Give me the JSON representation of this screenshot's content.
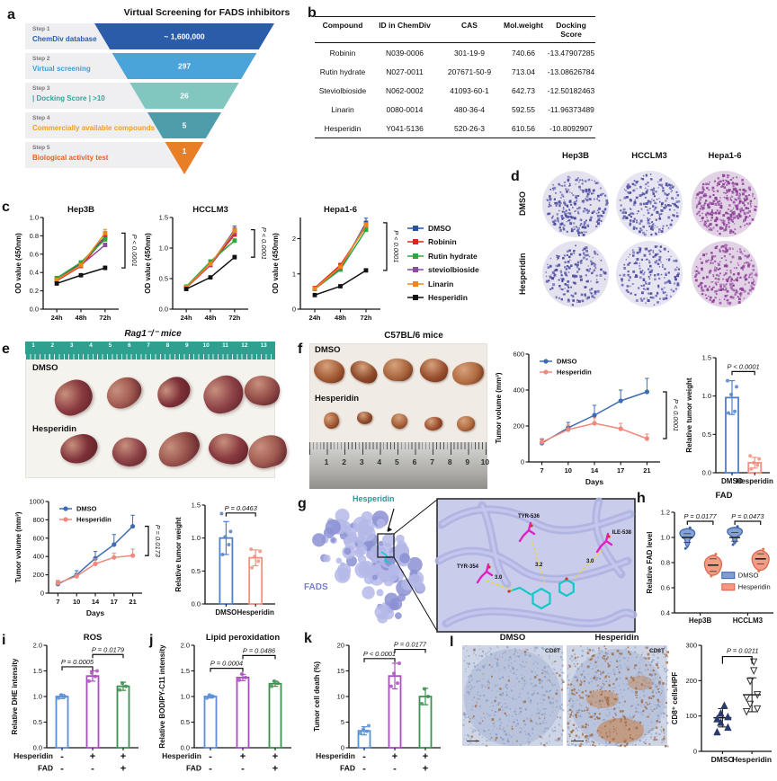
{
  "letters": {
    "a": "a",
    "b": "b",
    "c": "c",
    "d": "d",
    "e": "e",
    "f": "f",
    "g": "g",
    "h": "h",
    "i": "i",
    "j": "j",
    "k": "k",
    "l": "l"
  },
  "panel_a": {
    "title": "Virtual Screening for FADS inhibitors",
    "steps": [
      {
        "step": "Step 1",
        "label": "ChemDiv database",
        "value": "~ 1,600,000",
        "bar_color": "#2a5caa",
        "label_color": "#2a5caa"
      },
      {
        "step": "Step 2",
        "label": "Virtual screening",
        "value": "297",
        "bar_color": "#4aa4da",
        "label_color": "#3f9fd8"
      },
      {
        "step": "Step 3",
        "label": "| Docking Score | >10",
        "value": "26",
        "bar_color": "#82c7bf",
        "label_color": "#2fa79b"
      },
      {
        "step": "Step 4",
        "label": "Commercially available compounds",
        "value": "5",
        "bar_color": "#4e9dab",
        "label_color": "#f0a01e"
      },
      {
        "step": "Step 5",
        "label": "Biological activity test",
        "value": "1",
        "bar_color": "#e87e25",
        "label_color": "#e8611f"
      }
    ]
  },
  "panel_b": {
    "headers": [
      "Compound",
      "ID in ChemDiv",
      "CAS",
      "Mol.weight",
      "Docking Score"
    ],
    "rows": [
      [
        "Robinin",
        "N039-0006",
        "301-19-9",
        "740.66",
        "-13.47907285"
      ],
      [
        "Rutin hydrate",
        "N027-0011",
        "207671-50-9",
        "713.04",
        "-13.08626784"
      ],
      [
        "Steviolbioside",
        "N062-0002",
        "41093-60-1",
        "642.73",
        "-12.50182463"
      ],
      [
        "Linarin",
        "0080-0014",
        "480-36-4",
        "592.55",
        "-11.96373489"
      ],
      [
        "Hesperidin",
        "Y041-5136",
        "520-26-3",
        "610.56",
        "-10.8092907"
      ]
    ]
  },
  "panel_d": {
    "col_labels": [
      "Hep3B",
      "HCCLM3",
      "Hepa1-6"
    ],
    "row_labels": [
      "DMSO",
      "Hesperidin"
    ]
  },
  "panel_e": {
    "title": "Rag1⁻/⁻ mice",
    "row_labels": [
      "DMSO",
      "Hesperidin"
    ],
    "ruler_numbers": [
      "1",
      "2",
      "3",
      "4",
      "5",
      "6",
      "7",
      "8",
      "9",
      "10",
      "11",
      "12",
      "13"
    ]
  },
  "panel_f": {
    "title": "C57BL/6 mice",
    "row_labels": [
      "DMSO",
      "Hesperidin"
    ],
    "ruler_numbers": [
      "1",
      "2",
      "3",
      "4",
      "5",
      "6",
      "7",
      "8",
      "9",
      "10"
    ]
  },
  "panel_g": {
    "ligand_label": "Hesperidin",
    "protein_label": "FADS",
    "residues": [
      "TYR-536",
      "ILE-538",
      "TYR-354"
    ],
    "distances": [
      "3.0",
      "3.2",
      "3.0"
    ]
  },
  "panel_l": {
    "img_titles": [
      "DMSO",
      "Hesperidin"
    ],
    "marker_label": "CD8T"
  },
  "chart_data": [
    {
      "id": "hep3b",
      "type": "line",
      "title": "Hep3B",
      "x": [
        "24h",
        "48h",
        "72h"
      ],
      "ylabel": "OD value (450nm)",
      "ylim": [
        0,
        1.0
      ],
      "yticks": [
        0,
        0.2,
        0.4,
        0.6,
        0.8,
        1.0
      ],
      "ytick_labels": [
        "0.0",
        "0.2",
        "0.4",
        "0.6",
        "0.8",
        "1.0"
      ],
      "annotation": "P < 0.0001",
      "series": [
        {
          "name": "DMSO",
          "color": "#2b50a8",
          "values": [
            0.32,
            0.5,
            0.79
          ],
          "errors": [
            0.01,
            0.015,
            0.04
          ]
        },
        {
          "name": "Robinin",
          "color": "#e0241d",
          "values": [
            0.31,
            0.47,
            0.78
          ],
          "errors": [
            0.01,
            0.015,
            0.03
          ]
        },
        {
          "name": "Rutin hydrate",
          "color": "#2ca83c",
          "values": [
            0.34,
            0.51,
            0.76
          ],
          "errors": [
            0.01,
            0.01,
            0.02
          ]
        },
        {
          "name": "steviolbioside",
          "color": "#8d4a9e",
          "values": [
            0.32,
            0.48,
            0.7
          ],
          "errors": [
            0.01,
            0.01,
            0.02
          ]
        },
        {
          "name": "Linarin",
          "color": "#f08519",
          "values": [
            0.32,
            0.48,
            0.83
          ],
          "errors": [
            0.01,
            0.015,
            0.04
          ]
        },
        {
          "name": "Hesperidin",
          "color": "#111111",
          "values": [
            0.28,
            0.37,
            0.45
          ],
          "errors": [
            0.01,
            0.01,
            0.02
          ]
        }
      ]
    },
    {
      "id": "hcclm3",
      "type": "line",
      "title": "HCCLM3",
      "x": [
        "24h",
        "48h",
        "72h"
      ],
      "ylabel": "OD value (450nm)",
      "ylim": [
        0,
        1.5
      ],
      "yticks": [
        0,
        0.5,
        1.0,
        1.5
      ],
      "ytick_labels": [
        "0.0",
        "0.5",
        "1.0",
        "1.5"
      ],
      "annotation": "P < 0.0001",
      "series": [
        {
          "name": "DMSO",
          "color": "#2b50a8",
          "values": [
            0.36,
            0.73,
            1.3
          ],
          "errors": [
            0.01,
            0.02,
            0.06
          ]
        },
        {
          "name": "Robinin",
          "color": "#e0241d",
          "values": [
            0.35,
            0.72,
            1.22
          ],
          "errors": [
            0.01,
            0.02,
            0.04
          ]
        },
        {
          "name": "Rutin hydrate",
          "color": "#2ca83c",
          "values": [
            0.37,
            0.78,
            1.12
          ],
          "errors": [
            0.01,
            0.02,
            0.03
          ]
        },
        {
          "name": "steviolbioside",
          "color": "#8d4a9e",
          "values": [
            0.36,
            0.73,
            1.26
          ],
          "errors": [
            0.01,
            0.02,
            0.03
          ]
        },
        {
          "name": "Linarin",
          "color": "#f08519",
          "values": [
            0.36,
            0.74,
            1.28
          ],
          "errors": [
            0.01,
            0.02,
            0.04
          ]
        },
        {
          "name": "Hesperidin",
          "color": "#111111",
          "values": [
            0.33,
            0.52,
            0.85
          ],
          "errors": [
            0.01,
            0.01,
            0.03
          ]
        }
      ]
    },
    {
      "id": "hepa16",
      "type": "line",
      "title": "Hepa1-6",
      "x": [
        "24h",
        "48h",
        "72h"
      ],
      "ylabel": "OD value (450nm)",
      "ylim": [
        0,
        2.6
      ],
      "yticks": [
        0,
        1,
        2
      ],
      "ytick_labels": [
        "0",
        "1",
        "2"
      ],
      "annotation": "P < 0.0001",
      "series": [
        {
          "name": "DMSO",
          "color": "#2b50a8",
          "values": [
            0.58,
            1.15,
            2.45
          ],
          "errors": [
            0.02,
            0.05,
            0.13
          ]
        },
        {
          "name": "Robinin",
          "color": "#e0241d",
          "values": [
            0.6,
            1.25,
            2.35
          ],
          "errors": [
            0.02,
            0.05,
            0.08
          ]
        },
        {
          "name": "Rutin hydrate",
          "color": "#2ca83c",
          "values": [
            0.57,
            1.12,
            2.25
          ],
          "errors": [
            0.02,
            0.04,
            0.06
          ]
        },
        {
          "name": "steviolbioside",
          "color": "#8d4a9e",
          "values": [
            0.58,
            1.18,
            2.4
          ],
          "errors": [
            0.02,
            0.04,
            0.06
          ]
        },
        {
          "name": "Linarin",
          "color": "#f08519",
          "values": [
            0.58,
            1.2,
            2.38
          ],
          "errors": [
            0.02,
            0.04,
            0.07
          ]
        },
        {
          "name": "Hesperidin",
          "color": "#111111",
          "values": [
            0.4,
            0.65,
            1.1
          ],
          "errors": [
            0.02,
            0.03,
            0.04
          ]
        }
      ]
    },
    {
      "id": "e_volume",
      "type": "line",
      "x": [
        "7",
        "10",
        "14",
        "17",
        "21"
      ],
      "xlabel": "Days",
      "ylabel": "Tumor volume (mm³)",
      "ylim": [
        0,
        1000
      ],
      "yticks": [
        0,
        200,
        400,
        600,
        800,
        1000
      ],
      "annotation": "P = 0.0173",
      "legend": "inside",
      "marker": "circle",
      "series": [
        {
          "name": "DMSO",
          "color": "#3d6cb4",
          "values": [
            100,
            200,
            380,
            530,
            730
          ],
          "errors": [
            30,
            45,
            75,
            110,
            120
          ]
        },
        {
          "name": "Hesperidin",
          "color": "#f0897b",
          "values": [
            110,
            185,
            320,
            390,
            410
          ],
          "errors": [
            30,
            35,
            55,
            45,
            70
          ]
        }
      ]
    },
    {
      "id": "e_weight",
      "type": "bar",
      "categories": [
        "DMSO",
        "Hesperidin"
      ],
      "ylabel": "Relative tumor weight",
      "ylim": [
        0,
        1.5
      ],
      "yticks": [
        0,
        0.5,
        1.0,
        1.5
      ],
      "ytick_labels": [
        "0.0",
        "0.5",
        "1.0",
        "1.5"
      ],
      "values": [
        1.0,
        0.7
      ],
      "errors": [
        0.25,
        0.12
      ],
      "colors": [
        "#4f81c7",
        "#f2917f"
      ],
      "points": [
        [
          0.75,
          0.9,
          1.02,
          1.1,
          1.37
        ],
        [
          0.55,
          0.65,
          0.72,
          0.8,
          0.83
        ]
      ],
      "sig": [
        {
          "a": 0,
          "b": 1,
          "label": "P = 0.0463",
          "h": 1.38
        }
      ]
    },
    {
      "id": "f_volume",
      "type": "line",
      "x": [
        "7",
        "10",
        "14",
        "17",
        "21"
      ],
      "xlabel": "Days",
      "ylabel": "Tumor volume (mm³)",
      "ylim": [
        0,
        600
      ],
      "yticks": [
        0,
        200,
        400,
        600
      ],
      "annotation": "P < 0.0001",
      "legend": "inside",
      "marker": "circle",
      "series": [
        {
          "name": "DMSO",
          "color": "#3d6cb4",
          "values": [
            105,
            190,
            260,
            340,
            390
          ],
          "errors": [
            20,
            30,
            55,
            60,
            75
          ]
        },
        {
          "name": "Hesperidin",
          "color": "#f0897b",
          "values": [
            110,
            180,
            215,
            185,
            130
          ],
          "errors": [
            20,
            25,
            30,
            30,
            25
          ]
        }
      ]
    },
    {
      "id": "f_weight",
      "type": "bar",
      "categories": [
        "DMSO",
        "Hesperidin"
      ],
      "ylabel": "Relative tumor weight",
      "ylim": [
        0,
        1.5
      ],
      "yticks": [
        0,
        0.5,
        1.0,
        1.5
      ],
      "ytick_labels": [
        "0.0",
        "0.5",
        "1.0",
        "1.5"
      ],
      "values": [
        0.98,
        0.13
      ],
      "errors": [
        0.22,
        0.07
      ],
      "colors": [
        "#4f81c7",
        "#f2917f"
      ],
      "points": [
        [
          0.78,
          0.8,
          1.02,
          1.12,
          1.2
        ],
        [
          0.05,
          0.1,
          0.13,
          0.18,
          0.22
        ]
      ],
      "sig": [
        {
          "a": 0,
          "b": 1,
          "label": "P < 0.0001",
          "h": 1.32
        }
      ]
    },
    {
      "id": "fad_violin",
      "type": "violin",
      "title": "FAD",
      "ylabel": "Relative FAD level",
      "ylim": [
        0.4,
        1.2
      ],
      "yticks": [
        0.4,
        0.6,
        0.8,
        1.0,
        1.2
      ],
      "ytick_labels": [
        "0.4",
        "0.6",
        "0.8",
        "1.0",
        "1.2"
      ],
      "groups": [
        "Hep3B",
        "HCCLM3"
      ],
      "annotations": [
        "P = 0.0177",
        "P = 0.0473"
      ],
      "legend": [
        "DMSO",
        "Hesperidin"
      ],
      "colors": {
        "DMSO": {
          "stroke": "#3a5fa8",
          "fill": "#7d9fd4"
        },
        "Hesperidin": {
          "stroke": "#d8604d",
          "fill": "#f2997f"
        }
      },
      "violins": [
        {
          "group": 0,
          "series": "DMSO",
          "min": 0.92,
          "q1": 0.96,
          "median": 1.0,
          "q3": 1.03,
          "max": 1.07
        },
        {
          "group": 0,
          "series": "Hesperidin",
          "min": 0.7,
          "q1": 0.73,
          "median": 0.78,
          "q3": 0.83,
          "max": 0.86
        },
        {
          "group": 1,
          "series": "DMSO",
          "min": 0.95,
          "q1": 0.97,
          "median": 1.0,
          "q3": 1.04,
          "max": 1.08
        },
        {
          "group": 1,
          "series": "Hesperidin",
          "min": 0.74,
          "q1": 0.79,
          "median": 0.83,
          "q3": 0.87,
          "max": 0.9
        }
      ]
    },
    {
      "id": "ros",
      "type": "bar",
      "title": "ROS",
      "ylabel": "Relative DHE intensity",
      "ylim": [
        0,
        2
      ],
      "yticks": [
        0,
        0.5,
        1.0,
        1.5,
        2.0
      ],
      "ytick_labels": [
        "0.0",
        "0.5",
        "1.0",
        "1.5",
        "2.0"
      ],
      "values": [
        1.0,
        1.4,
        1.2
      ],
      "errors": [
        0.04,
        0.1,
        0.08
      ],
      "colors": [
        "#5b8ed6",
        "#ab4fc0",
        "#3d9150"
      ],
      "points": [
        [
          0.97,
          1.0,
          1.03
        ],
        [
          1.3,
          1.39,
          1.46,
          1.5
        ],
        [
          1.13,
          1.2,
          1.26
        ]
      ],
      "sig": [
        {
          "a": 0,
          "b": 1,
          "label": "P = 0.0005",
          "h": 1.58
        },
        {
          "a": 1,
          "b": 2,
          "label": "P = 0.0179",
          "h": 1.82
        }
      ],
      "matrix": {
        "rows": [
          {
            "label": "Hesperidin",
            "signs": [
              "-",
              "+",
              "+"
            ]
          },
          {
            "label": "FAD",
            "signs": [
              "-",
              "-",
              "+"
            ]
          }
        ]
      }
    },
    {
      "id": "lipid",
      "type": "bar",
      "title": "Lipid peroxidation",
      "ylabel": "Relative BODIPY-C11 intensity",
      "ylim": [
        0,
        2
      ],
      "yticks": [
        0,
        0.5,
        1.0,
        1.5,
        2.0
      ],
      "ytick_labels": [
        "0.0",
        "0.5",
        "1.0",
        "1.5",
        "2.0"
      ],
      "values": [
        1.0,
        1.37,
        1.25
      ],
      "errors": [
        0.03,
        0.06,
        0.05
      ],
      "colors": [
        "#5b8ed6",
        "#ab4fc0",
        "#3d9150"
      ],
      "points": [
        [
          0.97,
          1.0,
          1.03
        ],
        [
          1.32,
          1.37,
          1.44
        ],
        [
          1.2,
          1.26,
          1.3
        ]
      ],
      "sig": [
        {
          "a": 0,
          "b": 1,
          "label": "P = 0.0004",
          "h": 1.55
        },
        {
          "a": 1,
          "b": 2,
          "label": "P = 0.0486",
          "h": 1.8
        }
      ],
      "matrix": {
        "rows": [
          {
            "label": "Hesperidin",
            "signs": [
              "-",
              "+",
              "+"
            ]
          },
          {
            "label": "FAD",
            "signs": [
              "-",
              "-",
              "+"
            ]
          }
        ]
      }
    },
    {
      "id": "death",
      "type": "bar",
      "ylabel": "Tumor cell death (%)",
      "ylim": [
        0,
        20
      ],
      "yticks": [
        0,
        5,
        10,
        15,
        20
      ],
      "ytick_labels": [
        "0",
        "5",
        "10",
        "15",
        "20"
      ],
      "values": [
        3.3,
        14,
        10
      ],
      "errors": [
        0.8,
        2.5,
        1.6
      ],
      "colors": [
        "#5b8ed6",
        "#ab4fc0",
        "#3d9150"
      ],
      "points": [
        [
          2.8,
          3.2,
          3.6,
          4.3
        ],
        [
          12,
          12.6,
          14.5,
          16.5
        ],
        [
          8.6,
          10,
          11.5
        ]
      ],
      "sig": [
        {
          "a": 0,
          "b": 1,
          "label": "P < 0.0001",
          "h": 17.4
        },
        {
          "a": 1,
          "b": 2,
          "label": "P = 0.0177",
          "h": 19.2
        }
      ],
      "matrix": {
        "rows": [
          {
            "label": "Hesperidin",
            "signs": [
              "-",
              "+",
              "+"
            ]
          },
          {
            "label": "FAD",
            "signs": [
              "-",
              "-",
              "+"
            ]
          }
        ]
      }
    },
    {
      "id": "cd8",
      "type": "scatter",
      "ylabel": "CD8⁺ cells/HPF",
      "ylim": [
        0,
        300
      ],
      "yticks": [
        0,
        100,
        200,
        300
      ],
      "ytick_labels": [
        "0",
        "100",
        "200",
        "300"
      ],
      "categories": [
        "DMSO",
        "Hesperidin"
      ],
      "points": [
        [
          55,
          68,
          82,
          92,
          98,
          108,
          130
        ],
        [
          112,
          120,
          133,
          152,
          160,
          198,
          228,
          253
        ]
      ],
      "means": [
        95,
        160
      ],
      "sds": [
        26,
        48
      ],
      "annotation": "P = 0.0211"
    }
  ]
}
